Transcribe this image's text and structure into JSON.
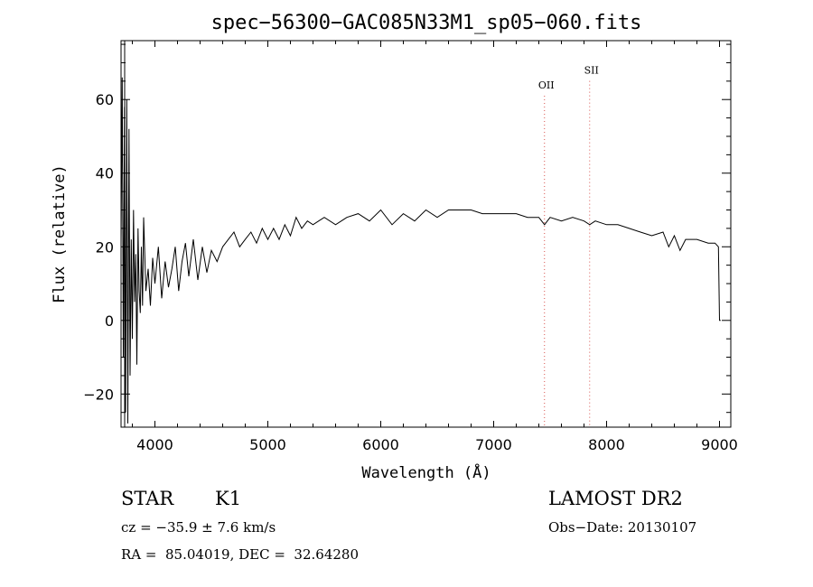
{
  "chart_data": {
    "type": "line",
    "title": "spec−56300−GAC085N33M1_sp05−060.fits",
    "xlabel": "Wavelength (Å)",
    "ylabel": "Flux (relative)",
    "xlim": [
      3700,
      9100
    ],
    "ylim": [
      -29,
      76
    ],
    "xticks": [
      4000,
      5000,
      6000,
      7000,
      8000,
      9000
    ],
    "xtick_labels": [
      "4000",
      "5000",
      "6000",
      "7000",
      "8000",
      "9000"
    ],
    "yticks": [
      -20,
      0,
      20,
      40,
      60
    ],
    "ytick_labels": [
      "−20",
      "0",
      "20",
      "40",
      "60"
    ],
    "grid": false,
    "line_color": "#000000",
    "marker_color": "#d9534f",
    "series": [
      {
        "x": [
          3700,
          3710,
          3720,
          3730,
          3740,
          3750,
          3760,
          3770,
          3780,
          3790,
          3800,
          3810,
          3820,
          3830,
          3840,
          3850,
          3860,
          3870,
          3880,
          3890,
          3900,
          3920,
          3940,
          3960,
          3980,
          4000,
          4030,
          4060,
          4090,
          4120,
          4150,
          4180,
          4210,
          4240,
          4270,
          4300,
          4340,
          4380,
          4420,
          4460,
          4500,
          4550,
          4600,
          4650,
          4700,
          4750,
          4800,
          4850,
          4900,
          4950,
          5000,
          5050,
          5100,
          5150,
          5200,
          5250,
          5300,
          5350,
          5400,
          5450,
          5500,
          5600,
          5700,
          5800,
          5900,
          6000,
          6100,
          6200,
          6300,
          6400,
          6500,
          6600,
          6700,
          6800,
          6900,
          7000,
          7100,
          7200,
          7300,
          7400,
          7450,
          7500,
          7600,
          7700,
          7800,
          7850,
          7900,
          8000,
          8100,
          8200,
          8300,
          8400,
          8500,
          8550,
          8600,
          8650,
          8700,
          8800,
          8900,
          8960,
          8990,
          9000,
          9010
        ],
        "y": [
          20,
          66,
          -10,
          58,
          -25,
          60,
          -28,
          52,
          -15,
          22,
          -5,
          30,
          5,
          18,
          -12,
          25,
          8,
          2,
          20,
          4,
          28,
          8,
          14,
          4,
          17,
          10,
          20,
          6,
          16,
          9,
          14,
          20,
          8,
          16,
          21,
          12,
          22,
          11,
          20,
          13,
          19,
          16,
          20,
          22,
          24,
          20,
          22,
          24,
          21,
          25,
          22,
          25,
          22,
          26,
          23,
          28,
          25,
          27,
          26,
          27,
          28,
          26,
          28,
          29,
          27,
          30,
          26,
          29,
          27,
          30,
          28,
          30,
          30,
          30,
          29,
          29,
          29,
          29,
          28,
          28,
          26,
          28,
          27,
          28,
          27,
          26,
          27,
          26,
          26,
          25,
          24,
          23,
          24,
          20,
          23,
          19,
          22,
          22,
          21,
          21,
          20,
          0,
          0
        ]
      }
    ],
    "annotations": [
      {
        "label": "OII",
        "x": 7450,
        "y": 63
      },
      {
        "label": "SII",
        "x": 7850,
        "y": 67
      }
    ]
  },
  "info": {
    "object_class": "STAR",
    "subclass": "K1",
    "survey": "LAMOST DR2",
    "cz": "cz = −35.9 ± 7.6 km/s",
    "obs_date": "Obs−Date: 20130107",
    "coords": "RA =  85.04019, DEC =  32.64280"
  }
}
